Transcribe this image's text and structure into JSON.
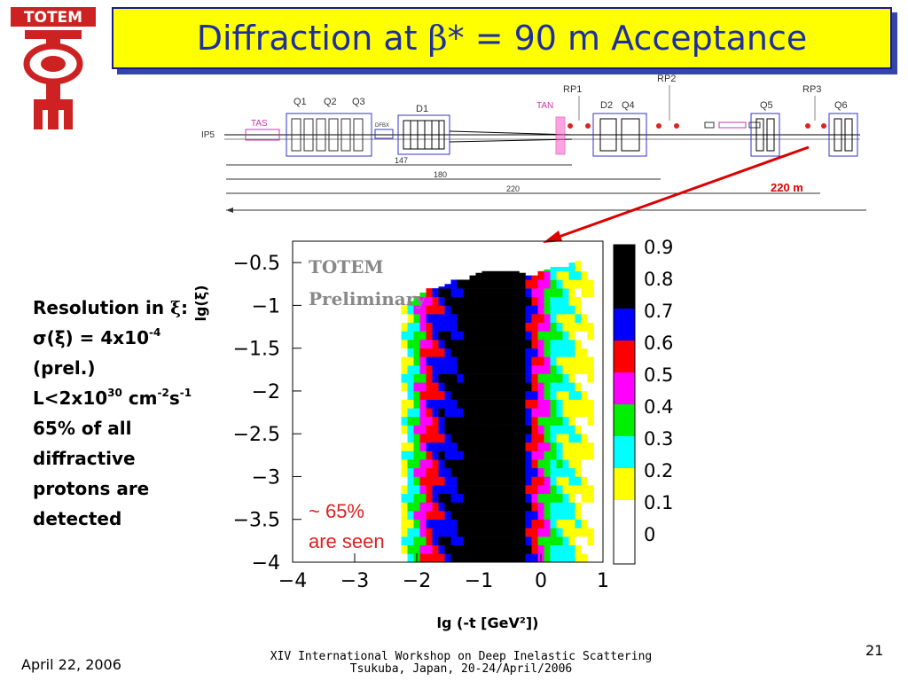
{
  "logo": {
    "text": "TOTEM",
    "color": "#cc2222"
  },
  "title": {
    "prefix": "Diffraction at ",
    "symbol": "β",
    "suffix": "* = 90 m Acceptance"
  },
  "beamline": {
    "labels": {
      "ip": "IP5",
      "tas": "TAS",
      "q1": "Q1",
      "q2": "Q2",
      "q3": "Q3",
      "dfbx": "DFBX",
      "d1": "D1",
      "tan": "TAN",
      "d2": "D2",
      "q4": "Q4",
      "q5": "Q5",
      "q6": "Q6",
      "rp1": "RP1",
      "rp2": "RP2",
      "rp3": "RP3"
    },
    "distances": [
      "147",
      "180",
      "220"
    ],
    "highlight": "220 m"
  },
  "plot": {
    "watermark": [
      "TOTEM",
      "Preliminary"
    ],
    "annotation": [
      "~ 65%",
      "are seen"
    ],
    "xlabel": "lg (-t  [GeV²])",
    "ylabel": "lg(ξ)",
    "x_ticks": [
      "−4",
      "−3",
      "−2",
      "−1",
      "0",
      "1"
    ],
    "y_ticks": [
      "−0.5",
      "−1",
      "−1.5",
      "−2",
      "−2.5",
      "−3",
      "−3.5",
      "−4"
    ],
    "colorbar_ticks": [
      "0.9",
      "0.8",
      "0.7",
      "0.6",
      "0.5",
      "0.4",
      "0.3",
      "0.2",
      "0.1",
      "0"
    ]
  },
  "chart_data": {
    "type": "heatmap",
    "xlabel": "lg (-t  [GeV²])",
    "ylabel": "lg(ξ)",
    "xlim": [
      -4,
      1
    ],
    "ylim": [
      -4,
      -0.25
    ],
    "z_range": [
      0,
      1
    ],
    "colorscale": [
      {
        "from": 0.9,
        "to": 1.0,
        "color": "#000000"
      },
      {
        "from": 0.8,
        "to": 0.9,
        "color": "#000000"
      },
      {
        "from": 0.7,
        "to": 0.8,
        "color": "#0000ff"
      },
      {
        "from": 0.6,
        "to": 0.7,
        "color": "#ff0000"
      },
      {
        "from": 0.5,
        "to": 0.6,
        "color": "#ff00ff"
      },
      {
        "from": 0.4,
        "to": 0.5,
        "color": "#00ee00"
      },
      {
        "from": 0.3,
        "to": 0.4,
        "color": "#00ffff"
      },
      {
        "from": 0.2,
        "to": 0.3,
        "color": "#ffff00"
      },
      {
        "from": 0.1,
        "to": 0.2,
        "color": "#ffffff"
      },
      {
        "from": 0.0,
        "to": 0.1,
        "color": "#ffffff"
      }
    ],
    "column_x": [
      -2.2,
      -2.1,
      -2.0,
      -1.9,
      -1.8,
      -1.7,
      -1.6,
      -1.5,
      -1.4,
      -1.3,
      -1.2,
      -1.1,
      -1.0,
      -0.9,
      -0.8,
      -0.7,
      -0.6,
      -0.5,
      -0.4,
      -0.3,
      -0.2,
      -0.1,
      0.0,
      0.1,
      0.2,
      0.3,
      0.4,
      0.5,
      0.6,
      0.7,
      0.8
    ],
    "column_values": [
      0.25,
      0.35,
      0.45,
      0.55,
      0.65,
      0.7,
      0.75,
      0.78,
      0.8,
      0.85,
      0.9,
      0.95,
      0.95,
      0.95,
      0.95,
      0.95,
      0.95,
      0.95,
      0.95,
      0.9,
      0.75,
      0.65,
      0.55,
      0.48,
      0.4,
      0.35,
      0.3,
      0.28,
      0.25,
      0.22,
      0.2
    ],
    "top_edge_y": [
      -1.0,
      -0.95,
      -0.9,
      -0.85,
      -0.8,
      -0.8,
      -0.78,
      -0.75,
      -0.7,
      -0.7,
      -0.7,
      -0.65,
      -0.62,
      -0.6,
      -0.6,
      -0.6,
      -0.6,
      -0.6,
      -0.6,
      -0.62,
      -0.65,
      -0.65,
      -0.6,
      -0.58,
      -0.55,
      -0.55,
      -0.55,
      -0.5,
      -0.48,
      -0.45,
      -0.45
    ]
  },
  "side": {
    "resolution": "Resolution in ",
    "xi": "ξ",
    "colon": ":",
    "sigma_line": "σ(ξ) = 4x10",
    "sigma_exp": "-4",
    "prel": "(prel.)",
    "lumi": "L<2x10",
    "lumi_exp": "30",
    "cm": " cm",
    "cm_exp": "-2",
    "s": "s",
    "s_exp": "-1",
    "fraction": "65% of all diffractive protons are detected"
  },
  "footer": {
    "date": "April 22, 2006",
    "workshop": "XIV International Workshop on Deep Inelastic Scattering",
    "location": "Tsukuba, Japan, 20-24/April/2006",
    "page": "21"
  }
}
